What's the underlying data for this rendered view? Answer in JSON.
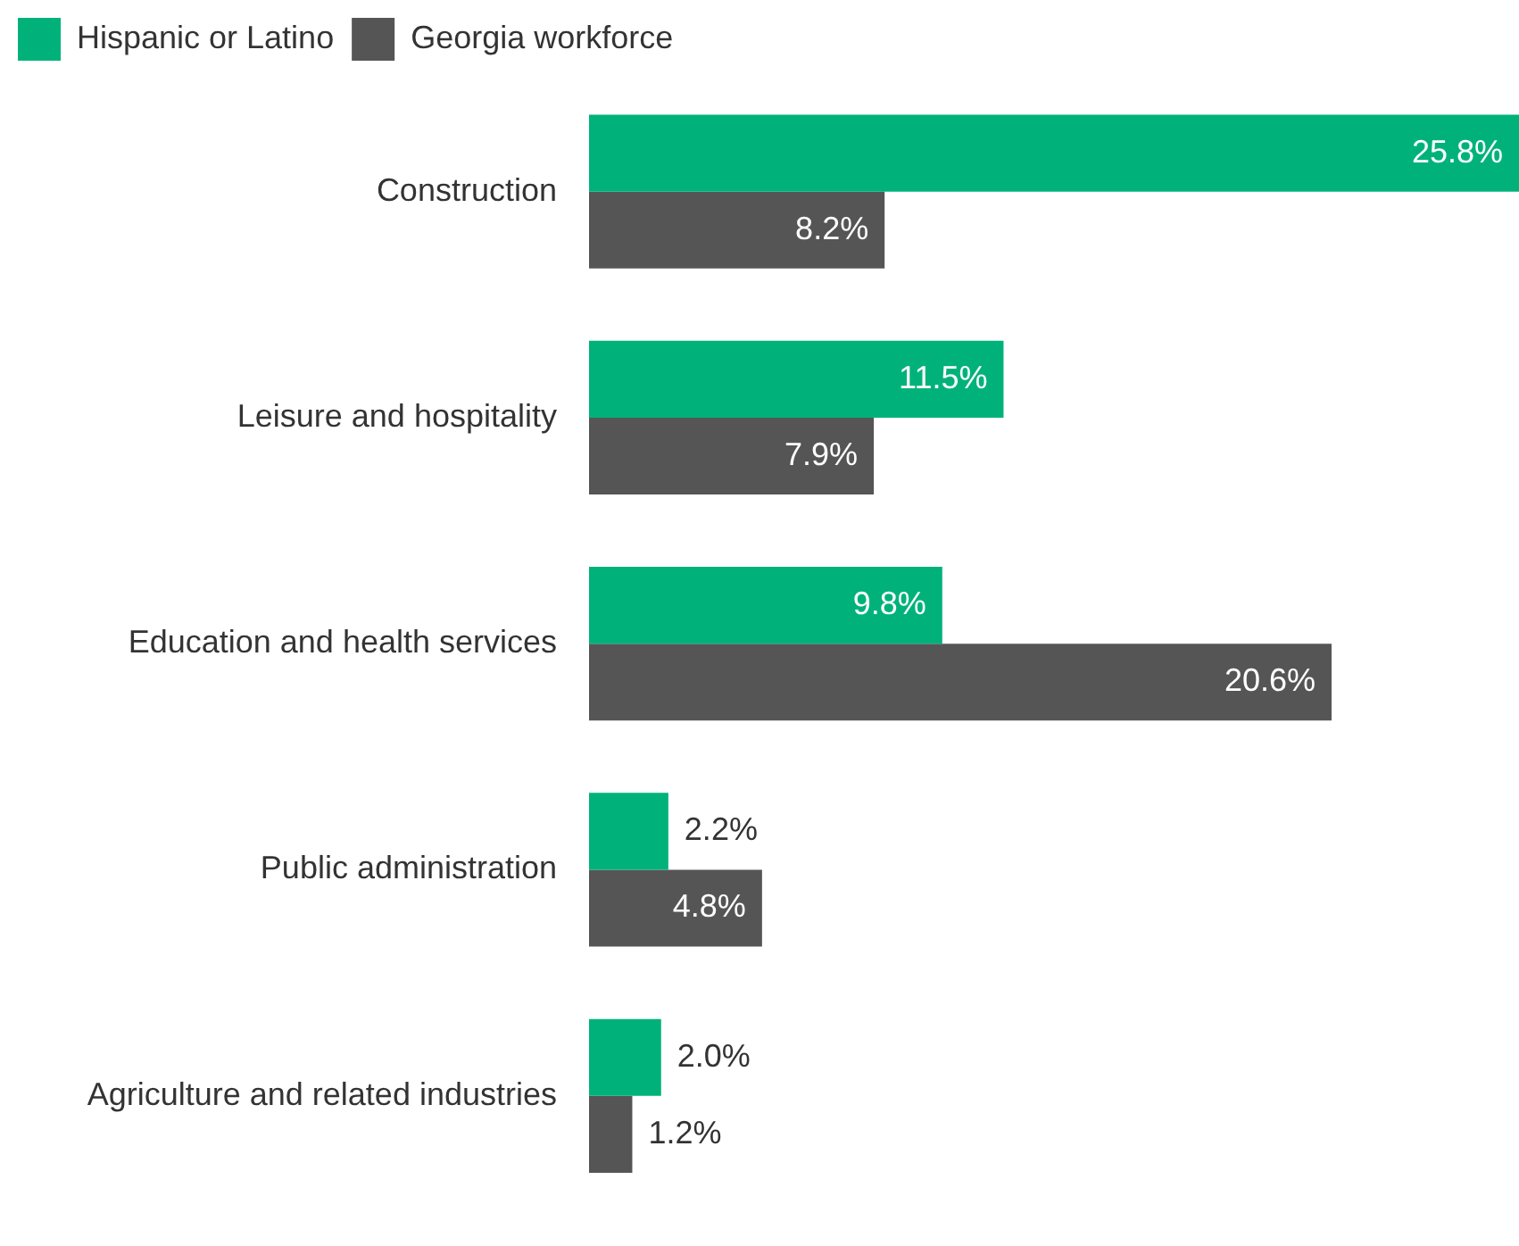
{
  "chart_data": {
    "type": "bar",
    "orientation": "horizontal",
    "legend": "top left",
    "categories": [
      "Construction",
      "Leisure and hospitality",
      "Education and health services",
      "Public administration",
      "Agriculture and related industries"
    ],
    "series": [
      {
        "name": "Hispanic or Latino",
        "color": "#00b27a",
        "values": [
          25.8,
          11.5,
          9.8,
          2.2,
          2.0
        ],
        "value_labels": [
          "25.8%",
          "11.5%",
          "9.8%",
          "2.2%",
          "2.0%"
        ]
      },
      {
        "name": "Georgia workforce",
        "color": "#555555",
        "values": [
          8.2,
          7.9,
          20.6,
          4.8,
          1.2
        ],
        "value_labels": [
          "8.2%",
          "7.9%",
          "20.6%",
          "4.8%",
          "1.2%"
        ]
      }
    ]
  }
}
